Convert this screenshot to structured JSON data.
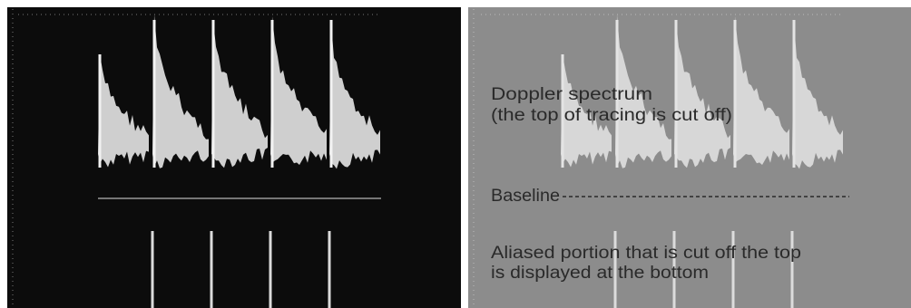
{
  "annotations": {
    "spectrum": {
      "line1": "Doppler spectrum",
      "line2": "(the top of tracing is cut off)"
    },
    "baseline": "Baseline",
    "aliased": {
      "line1": "Aliased portion that is cut off the top",
      "line2": "is displayed at the bottom"
    }
  }
}
